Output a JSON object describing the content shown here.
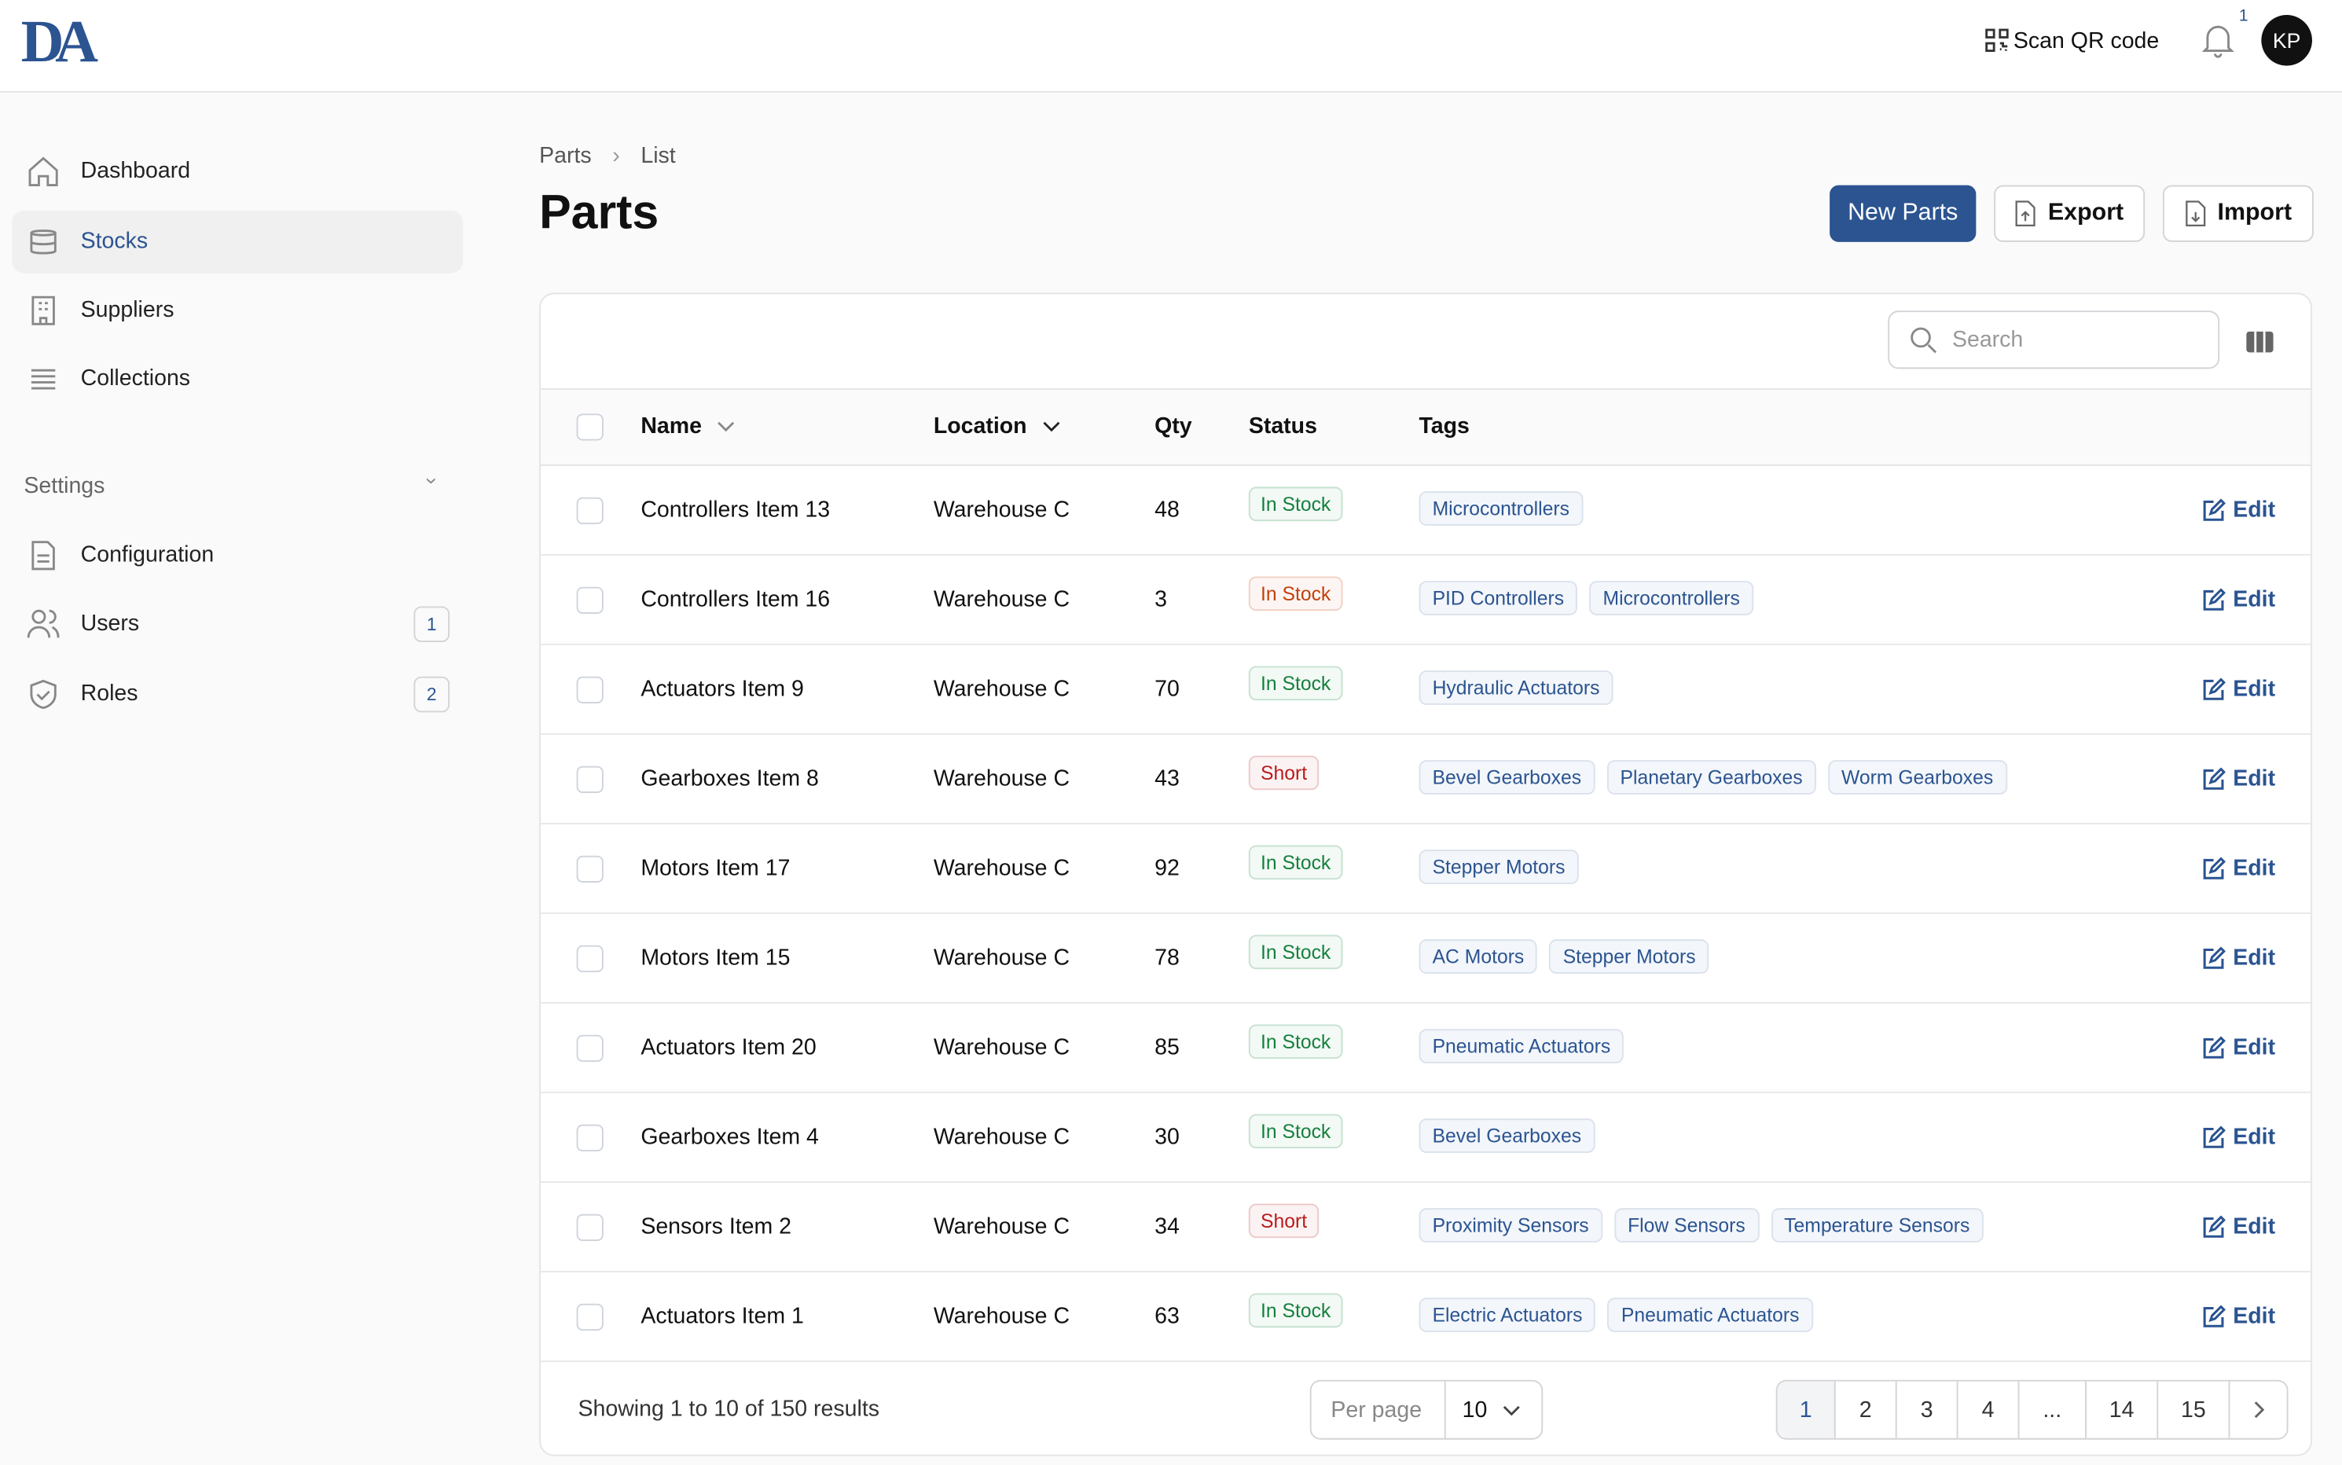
{
  "header": {
    "logo": "DA",
    "scan_qr": "Scan QR code",
    "notification_count": "1",
    "avatar": "KP"
  },
  "sidebar": {
    "nav": [
      "Dashboard",
      "Stocks",
      "Suppliers",
      "Collections"
    ],
    "settings": {
      "title": "Settings",
      "items": [
        {
          "label": "Configuration"
        },
        {
          "label": "Users",
          "badge": "1"
        },
        {
          "label": "Roles",
          "badge": "2"
        }
      ]
    }
  },
  "breadcrumb": [
    "Parts",
    "List"
  ],
  "title": "Parts",
  "actions": [
    "New Parts",
    "Export",
    "Import"
  ],
  "search_placeholder": "Search",
  "table": {
    "columns": [
      "Name",
      "Location",
      "Qty",
      "Status",
      "Tags"
    ],
    "edit_label": "Edit",
    "rows": [
      {
        "name": "Controllers Item 13",
        "location": "Warehouse C",
        "qty": 48,
        "status": "In Stock",
        "status_color": "#15803d",
        "tags": [
          "Microcontrollers"
        ]
      },
      {
        "name": "Controllers Item 16",
        "location": "Warehouse C",
        "qty": 3,
        "status": "In Stock",
        "status_color": "#c2410c",
        "tags": [
          "PID Controllers",
          "Microcontrollers"
        ]
      },
      {
        "name": "Actuators Item 9",
        "location": "Warehouse C",
        "qty": 70,
        "status": "In Stock",
        "status_color": "#15803d",
        "tags": [
          "Hydraulic Actuators"
        ]
      },
      {
        "name": "Gearboxes Item 8",
        "location": "Warehouse C",
        "qty": 43,
        "status": "Short",
        "status_color": "#b91c1c",
        "tags": [
          "Bevel Gearboxes",
          "Planetary Gearboxes",
          "Worm Gearboxes"
        ]
      },
      {
        "name": "Motors Item 17",
        "location": "Warehouse C",
        "qty": 92,
        "status": "In Stock",
        "status_color": "#15803d",
        "tags": [
          "Stepper Motors"
        ]
      },
      {
        "name": "Motors Item 15",
        "location": "Warehouse C",
        "qty": 78,
        "status": "In Stock",
        "status_color": "#15803d",
        "tags": [
          "AC Motors",
          "Stepper Motors"
        ]
      },
      {
        "name": "Actuators Item 20",
        "location": "Warehouse C",
        "qty": 85,
        "status": "In Stock",
        "status_color": "#15803d",
        "tags": [
          "Pneumatic Actuators"
        ]
      },
      {
        "name": "Gearboxes Item 4",
        "location": "Warehouse C",
        "qty": 30,
        "status": "In Stock",
        "status_color": "#15803d",
        "tags": [
          "Bevel Gearboxes"
        ]
      },
      {
        "name": "Sensors Item 2",
        "location": "Warehouse C",
        "qty": 34,
        "status": "Short",
        "status_color": "#b91c1c",
        "tags": [
          "Proximity Sensors",
          "Flow Sensors",
          "Temperature Sensors"
        ]
      },
      {
        "name": "Actuators Item 1",
        "location": "Warehouse C",
        "qty": 63,
        "status": "In Stock",
        "status_color": "#15803d",
        "tags": [
          "Electric Actuators",
          "Pneumatic Actuators"
        ]
      }
    ]
  },
  "footer": {
    "summary": "Showing 1 to 10 of 150 results",
    "per_page_label": "Per page",
    "per_page_value": "10",
    "pages": [
      "1",
      "2",
      "3",
      "4",
      "...",
      "14",
      "15"
    ]
  }
}
